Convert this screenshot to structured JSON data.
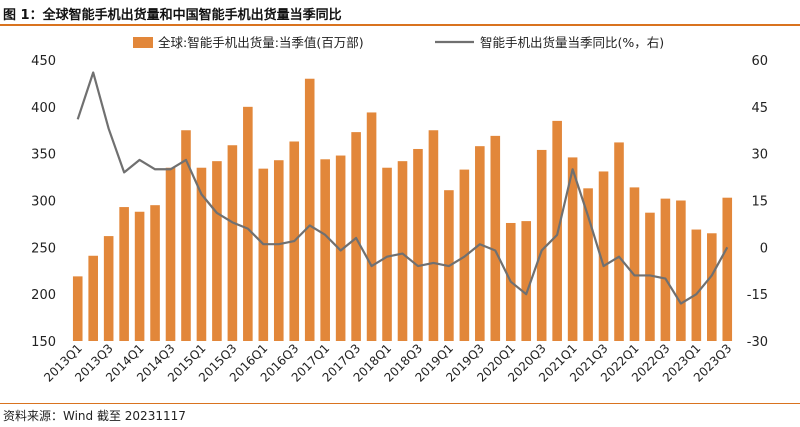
{
  "title": "图 1：全球智能手机出货量和中国智能手机出货量当季同比",
  "source": "资料来源：Wind  截至 20231117",
  "colors": {
    "bar": "#e2873a",
    "line": "#707070",
    "accent": "#d9731f"
  },
  "chart_data": {
    "type": "bar+line",
    "categories": [
      "2013Q1",
      "2013Q2",
      "2013Q3",
      "2013Q4",
      "2014Q1",
      "2014Q2",
      "2014Q3",
      "2014Q4",
      "2015Q1",
      "2015Q2",
      "2015Q3",
      "2015Q4",
      "2016Q1",
      "2016Q2",
      "2016Q3",
      "2016Q4",
      "2017Q1",
      "2017Q2",
      "2017Q3",
      "2017Q4",
      "2018Q1",
      "2018Q2",
      "2018Q3",
      "2018Q4",
      "2019Q1",
      "2019Q2",
      "2019Q3",
      "2019Q4",
      "2020Q1",
      "2020Q2",
      "2020Q3",
      "2020Q4",
      "2021Q1",
      "2021Q2",
      "2021Q3",
      "2021Q4",
      "2022Q1",
      "2022Q2",
      "2022Q3",
      "2022Q4",
      "2023Q1",
      "2023Q2",
      "2023Q3"
    ],
    "xtick_labels": [
      "2013Q1",
      "2013Q3",
      "2014Q1",
      "2014Q3",
      "2015Q1",
      "2015Q3",
      "2016Q1",
      "2016Q3",
      "2017Q1",
      "2017Q3",
      "2018Q1",
      "2018Q3",
      "2019Q1",
      "2019Q3",
      "2020Q1",
      "2020Q3",
      "2021Q1",
      "2021Q3",
      "2022Q1",
      "2022Q3",
      "2023Q1",
      "2023Q3"
    ],
    "series": [
      {
        "name": "全球:智能手机出货量:当季值(百万部)",
        "type": "bar",
        "axis": "left",
        "values": [
          219,
          241,
          262,
          293,
          288,
          295,
          335,
          375,
          335,
          342,
          359,
          400,
          334,
          343,
          363,
          430,
          344,
          348,
          373,
          394,
          335,
          342,
          355,
          375,
          311,
          333,
          358,
          369,
          276,
          278,
          354,
          385,
          346,
          313,
          331,
          362,
          314,
          287,
          302,
          300,
          269,
          265,
          303
        ]
      },
      {
        "name": "智能手机出货量当季同比(%，右)",
        "type": "line",
        "axis": "right",
        "values": [
          41,
          56,
          38,
          24,
          28,
          25,
          25,
          28,
          17,
          11,
          8,
          6,
          1,
          1,
          2,
          7,
          4,
          -1,
          3,
          -6,
          -3,
          -2,
          -6,
          -5,
          -6,
          -3,
          1,
          -1,
          -11,
          -15,
          -1,
          4,
          25,
          10,
          -6,
          -3,
          -9,
          -9,
          -10,
          -18,
          -15,
          -9,
          0
        ]
      }
    ],
    "ylim_left": [
      150,
      450
    ],
    "yticks_left": [
      150,
      200,
      250,
      300,
      350,
      400,
      450
    ],
    "ylim_right": [
      -30,
      60
    ],
    "yticks_right": [
      -30,
      -15,
      0,
      15,
      30,
      45,
      60
    ],
    "legend_position": "top"
  }
}
